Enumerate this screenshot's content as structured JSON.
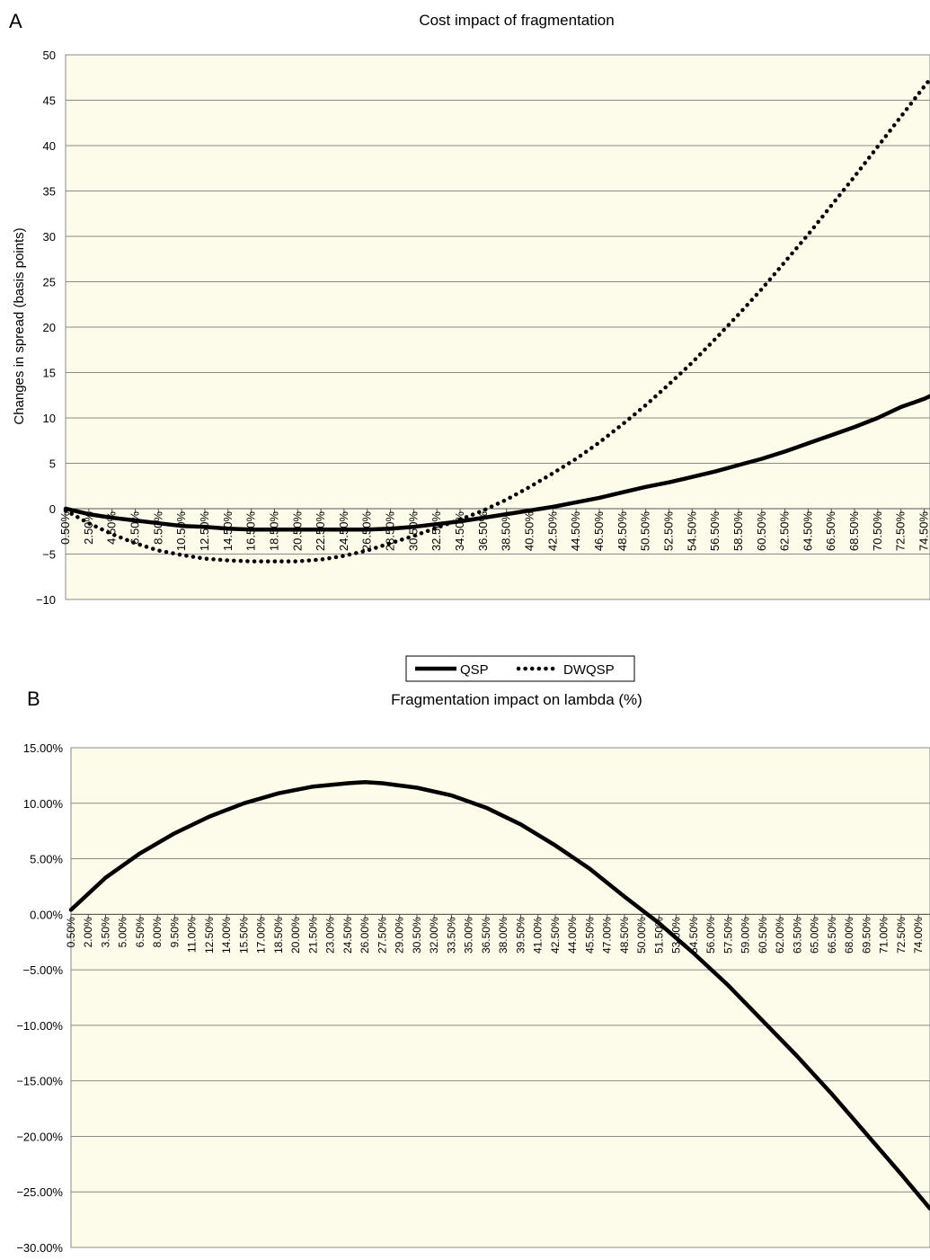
{
  "chart_data": [
    {
      "panel_label": "A",
      "type": "line",
      "title": "Cost impact of fragmentation",
      "ylabel": "Changes in spread (basis points)",
      "xlabel": "",
      "ylim": [
        -10,
        50
      ],
      "yticks": [
        -10,
        -5,
        0,
        5,
        10,
        15,
        20,
        25,
        30,
        35,
        40,
        45,
        50
      ],
      "ytick_labels": [
        "−10",
        "−5",
        "0",
        "5",
        "10",
        "15",
        "20",
        "25",
        "30",
        "35",
        "40",
        "45",
        "50"
      ],
      "xlim": [
        0.5,
        75
      ],
      "xticks": [
        0.5,
        2.5,
        4.5,
        6.5,
        8.5,
        10.5,
        12.5,
        14.5,
        16.5,
        18.5,
        20.5,
        22.5,
        24.5,
        26.5,
        28.5,
        30.5,
        32.5,
        34.5,
        36.5,
        38.5,
        40.5,
        42.5,
        44.5,
        46.5,
        48.5,
        50.5,
        52.5,
        54.5,
        56.5,
        58.5,
        60.5,
        62.5,
        64.5,
        66.5,
        68.5,
        70.5,
        72.5,
        74.5
      ],
      "xtick_labels": [
        "0.50%",
        "2.50%",
        "4.50%",
        "6.50%",
        "8.50%",
        "10.50%",
        "12.50%",
        "14.50%",
        "16.50%",
        "18.50%",
        "20.50%",
        "22.50%",
        "24.50%",
        "26.50%",
        "28.50%",
        "30.50%",
        "32.50%",
        "34.50%",
        "36.50%",
        "38.50%",
        "40.50%",
        "42.50%",
        "44.50%",
        "46.50%",
        "48.50%",
        "50.50%",
        "52.50%",
        "54.50%",
        "56.50%",
        "58.50%",
        "60.50%",
        "62.50%",
        "64.50%",
        "66.50%",
        "68.50%",
        "70.50%",
        "72.50%",
        "74.50%"
      ],
      "grid": "horizontal",
      "plot_bg": "#fdfcea",
      "legend_position": "bottom-center",
      "series": [
        {
          "name": "QSP",
          "style": "solid",
          "color": "#000000",
          "x": [
            0.5,
            2.5,
            4.5,
            6.5,
            8.5,
            10.5,
            12.5,
            14.5,
            16.5,
            18.5,
            20.5,
            22.5,
            24.5,
            26.5,
            28.5,
            30.5,
            32.5,
            34.5,
            36.5,
            38.5,
            40.5,
            42.5,
            44.5,
            46.5,
            48.5,
            50.5,
            52.5,
            54.5,
            56.5,
            58.5,
            60.5,
            62.5,
            64.5,
            66.5,
            68.5,
            70.5,
            72.5,
            74.5,
            75
          ],
          "values": [
            0,
            -0.6,
            -1.0,
            -1.3,
            -1.6,
            -1.9,
            -2.0,
            -2.2,
            -2.3,
            -2.3,
            -2.3,
            -2.3,
            -2.3,
            -2.3,
            -2.2,
            -2.0,
            -1.7,
            -1.4,
            -1.0,
            -0.6,
            -0.2,
            0.2,
            0.7,
            1.2,
            1.8,
            2.4,
            2.9,
            3.5,
            4.1,
            4.8,
            5.5,
            6.3,
            7.2,
            8.1,
            9.0,
            10.0,
            11.2,
            12.1,
            12.4
          ]
        },
        {
          "name": "DWQSP",
          "style": "dotted",
          "color": "#000000",
          "x": [
            0.5,
            2.5,
            4.5,
            6.5,
            8.5,
            10.5,
            12.5,
            14.5,
            16.5,
            18.5,
            20.5,
            22.5,
            24.5,
            26.5,
            28.5,
            30.5,
            32.5,
            34.5,
            36.5,
            38.5,
            40.5,
            42.5,
            44.5,
            46.5,
            48.5,
            50.5,
            52.5,
            54.5,
            56.5,
            58.5,
            60.5,
            62.5,
            64.5,
            66.5,
            68.5,
            70.5,
            72.5,
            74.5,
            75
          ],
          "values": [
            -0.2,
            -1.6,
            -2.8,
            -3.8,
            -4.6,
            -5.1,
            -5.5,
            -5.7,
            -5.8,
            -5.8,
            -5.8,
            -5.6,
            -5.2,
            -4.6,
            -3.8,
            -3.0,
            -2.1,
            -1.2,
            -0.2,
            1.0,
            2.4,
            3.9,
            5.5,
            7.3,
            9.3,
            11.4,
            13.7,
            16.1,
            18.7,
            21.4,
            24.2,
            27.2,
            30.2,
            33.4,
            36.6,
            39.9,
            43.2,
            46.5,
            47.3
          ]
        }
      ]
    },
    {
      "panel_label": "B",
      "type": "line",
      "title": "Fragmentation impact on lambda (%)",
      "xlabel": "",
      "ylabel": "",
      "ylim": [
        -30,
        15
      ],
      "yticks": [
        -30,
        -25,
        -20,
        -15,
        -10,
        -5,
        0,
        5,
        10,
        15
      ],
      "ytick_labels": [
        "−30.00%",
        "−25.00%",
        "−20.00%",
        "−15.00%",
        "−10.00%",
        "−5.00%",
        "0.00%",
        "5.00%",
        "10.00%",
        "15.00%"
      ],
      "xlim": [
        0.5,
        75
      ],
      "xticks": [
        0.5,
        2.0,
        3.5,
        5.0,
        6.5,
        8.0,
        9.5,
        11.0,
        12.5,
        14.0,
        15.5,
        17.0,
        18.5,
        20.0,
        21.5,
        23.0,
        24.5,
        26.0,
        27.5,
        29.0,
        30.5,
        32.0,
        33.5,
        35.0,
        36.5,
        38.0,
        39.5,
        41.0,
        42.5,
        44.0,
        45.5,
        47.0,
        48.5,
        50.0,
        51.5,
        53.0,
        54.5,
        56.0,
        57.5,
        59.0,
        60.5,
        62.0,
        63.5,
        65.0,
        66.5,
        68.0,
        69.5,
        71.0,
        72.5,
        74.0
      ],
      "xtick_labels": [
        "0.50%",
        "2.00%",
        "3.50%",
        "5.00%",
        "6.50%",
        "8.00%",
        "9.50%",
        "11.00%",
        "12.50%",
        "14.00%",
        "15.50%",
        "17.00%",
        "18.50%",
        "20.00%",
        "21.50%",
        "23.00%",
        "24.50%",
        "26.00%",
        "27.50%",
        "29.00%",
        "30.50%",
        "32.00%",
        "33.50%",
        "35.00%",
        "36.50%",
        "38.00%",
        "39.50%",
        "41.00%",
        "42.50%",
        "44.00%",
        "45.50%",
        "47.00%",
        "48.50%",
        "50.00%",
        "51.50%",
        "53.00%",
        "54.50%",
        "56.00%",
        "57.50%",
        "59.00%",
        "60.50%",
        "62.00%",
        "63.50%",
        "65.00%",
        "66.50%",
        "68.00%",
        "69.50%",
        "71.00%",
        "72.50%",
        "74.00%"
      ],
      "grid": "horizontal",
      "plot_bg": "#fdfcea",
      "series": [
        {
          "style": "solid",
          "color": "#000000",
          "x": [
            0.5,
            3.5,
            6.5,
            9.5,
            12.5,
            15.5,
            18.5,
            21.5,
            24.5,
            26.0,
            27.5,
            30.5,
            33.5,
            36.5,
            39.5,
            42.5,
            45.5,
            48.5,
            51.5,
            54.5,
            57.5,
            60.5,
            63.5,
            66.5,
            69.5,
            72.5,
            75
          ],
          "values": [
            0.4,
            3.3,
            5.5,
            7.3,
            8.8,
            10.0,
            10.9,
            11.5,
            11.8,
            11.9,
            11.8,
            11.4,
            10.7,
            9.6,
            8.1,
            6.2,
            4.1,
            1.6,
            -0.8,
            -3.5,
            -6.4,
            -9.6,
            -12.8,
            -16.2,
            -19.8,
            -23.4,
            -26.5
          ]
        }
      ]
    }
  ]
}
